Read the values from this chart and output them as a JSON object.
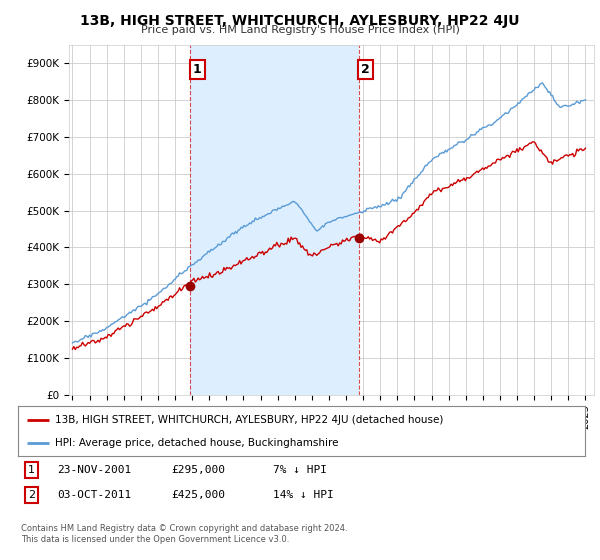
{
  "title": "13B, HIGH STREET, WHITCHURCH, AYLESBURY, HP22 4JU",
  "subtitle": "Price paid vs. HM Land Registry's House Price Index (HPI)",
  "ylim": [
    0,
    950000
  ],
  "xlim": [
    1994.8,
    2025.5
  ],
  "yticks": [
    0,
    100000,
    200000,
    300000,
    400000,
    500000,
    600000,
    700000,
    800000,
    900000
  ],
  "ytick_labels": [
    "£0",
    "£100K",
    "£200K",
    "£300K",
    "£400K",
    "£500K",
    "£600K",
    "£700K",
    "£800K",
    "£900K"
  ],
  "plot_bg": "#ffffff",
  "grid_color": "#cccccc",
  "shade_color": "#ddeeff",
  "red_line_color": "#cc0000",
  "blue_line_color": "#5b9bd5",
  "marker_color": "#990000",
  "sale1_x": 2001.9,
  "sale1_y": 295000,
  "sale1_label": "1",
  "sale2_x": 2011.75,
  "sale2_y": 425000,
  "sale2_label": "2",
  "vline1_x": 2001.9,
  "vline2_x": 2011.75,
  "vline_color": "#cc0000",
  "legend_text1": "13B, HIGH STREET, WHITCHURCH, AYLESBURY, HP22 4JU (detached house)",
  "legend_text2": "HPI: Average price, detached house, Buckinghamshire",
  "footnote1": "Contains HM Land Registry data © Crown copyright and database right 2024.",
  "footnote2": "This data is licensed under the Open Government Licence v3.0."
}
